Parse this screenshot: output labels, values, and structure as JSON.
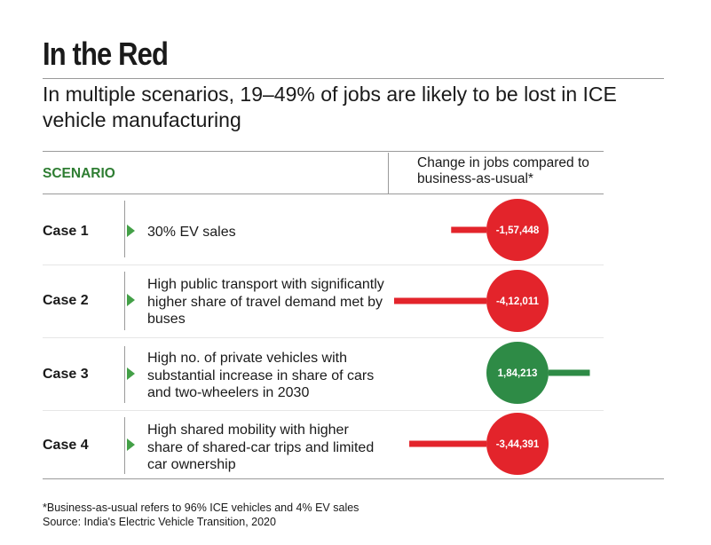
{
  "title": "In the Red",
  "subtitle": "In multiple scenarios, 19–49% of jobs are likely to be lost in ICE vehicle manufacturing",
  "header": {
    "scenario": "SCENARIO",
    "change": "Change in jobs compared to business-as-usual*"
  },
  "chart_data": {
    "type": "bar",
    "title": "In the Red",
    "xlabel": "",
    "ylabel": "Change in jobs compared to business-as-usual*",
    "categories": [
      "Case 1",
      "Case 2",
      "Case 3",
      "Case 4"
    ],
    "descriptions": [
      "30% EV sales",
      "High public transport with significantly higher share of travel demand met by buses",
      "High no. of private vehicles with substantial increase in share of cars and two-wheelers in 2030",
      "High shared mobility with higher share of shared-car trips and limited car ownership"
    ],
    "values": [
      -157448,
      -412011,
      184213,
      -344391
    ],
    "value_labels": [
      "-1,57,448",
      "-4,12,011",
      "1,84,213",
      "-3,44,391"
    ],
    "max_abs": 412011,
    "colors": {
      "negative": "#e3242b",
      "positive": "#2e8b46"
    }
  },
  "footnote": {
    "line1": "*Business-as-usual refers to 96% ICE vehicles and 4% EV sales",
    "line2": "Source: India's Electric Vehicle Transition, 2020"
  }
}
